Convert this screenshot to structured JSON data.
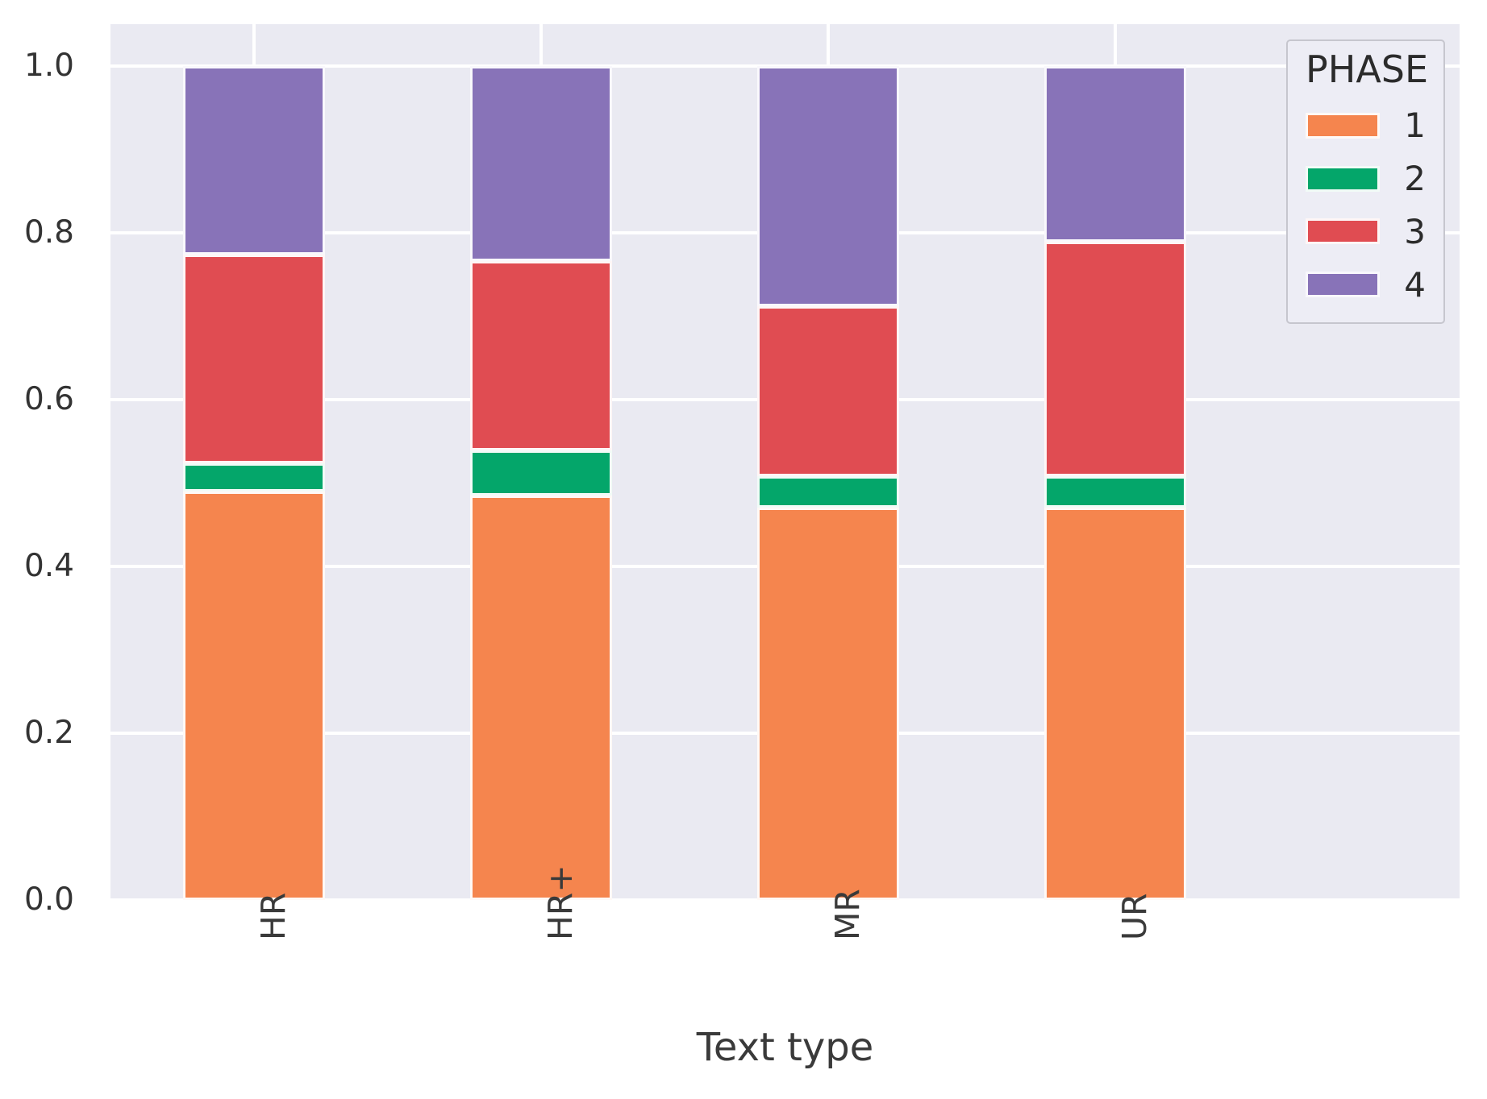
{
  "chart_data": {
    "type": "bar",
    "stacked": true,
    "title": "",
    "xlabel": "Text type",
    "ylabel": "",
    "categories": [
      "HR",
      "HR+",
      "MR",
      "UR"
    ],
    "series": [
      {
        "name": "1",
        "color": "#F5854E",
        "values": [
          0.49,
          0.485,
          0.47,
          0.47
        ]
      },
      {
        "name": "2",
        "color": "#04A66A",
        "values": [
          0.034,
          0.054,
          0.038,
          0.038
        ]
      },
      {
        "name": "3",
        "color": "#E04C52",
        "values": [
          0.25,
          0.227,
          0.204,
          0.281
        ]
      },
      {
        "name": "4",
        "color": "#8873B8",
        "values": [
          0.226,
          0.234,
          0.288,
          0.211
        ]
      }
    ],
    "ylim": [
      0,
      1.05
    ],
    "xlim": [
      -0.5,
      4.2
    ],
    "bar_width_units": 0.494,
    "yticks": [
      0.0,
      0.2,
      0.4,
      0.6,
      0.8,
      1.0
    ],
    "ytick_labels": [
      "0.0",
      "0.2",
      "0.4",
      "0.6",
      "0.8",
      "1.0"
    ],
    "grid": true,
    "legend_title": "PHASE",
    "legend_position": "upper right",
    "plot_background": "#EAEAF2",
    "gridline_color": "#FFFFFF"
  }
}
